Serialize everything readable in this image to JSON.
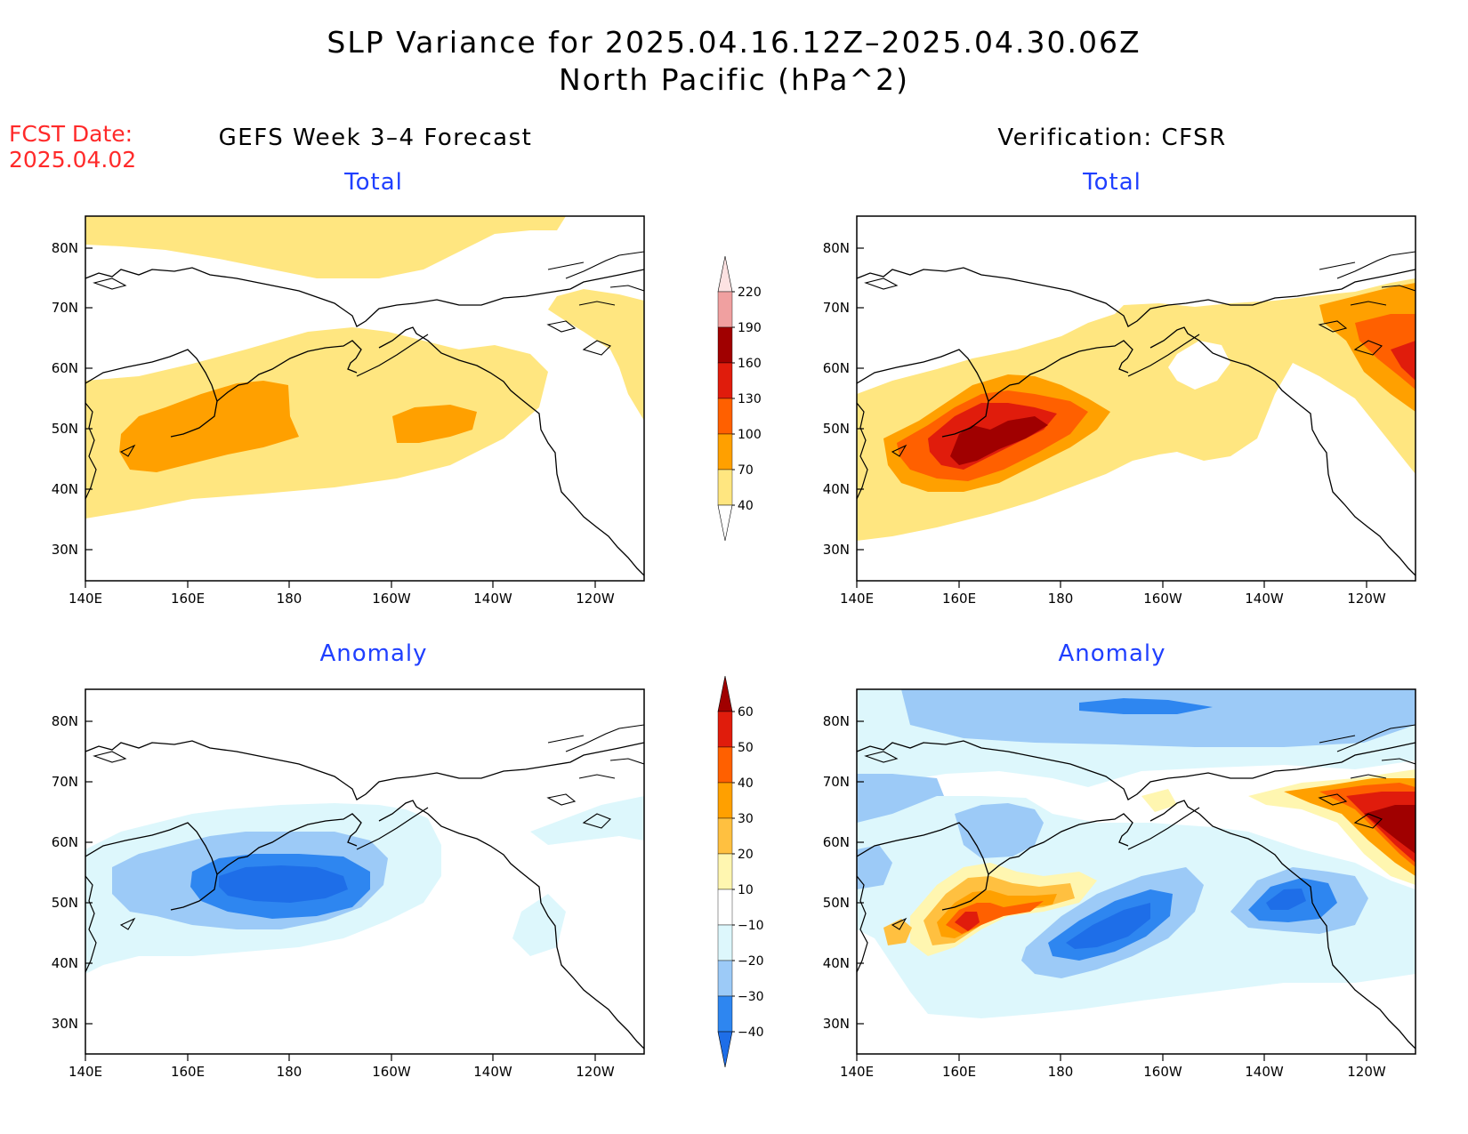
{
  "header": {
    "title_line1": "SLP Variance for 2025.04.16.12Z–2025.04.30.06Z",
    "title_line2": "North Pacific (hPa^2)",
    "fcst_label": "FCST Date:",
    "fcst_date": "2025.04.02"
  },
  "columns": {
    "left": "GEFS Week 3–4 Forecast",
    "right": "Verification: CFSR"
  },
  "panel_titles": {
    "top_left": "Total",
    "top_right": "Total",
    "bottom_left": "Anomaly",
    "bottom_right": "Anomaly"
  },
  "axes": {
    "lon_labels": [
      "140E",
      "160E",
      "180",
      "160W",
      "140W",
      "120W"
    ],
    "lat_labels": [
      "80N",
      "70N",
      "60N",
      "50N",
      "40N",
      "30N"
    ]
  },
  "colorbar_total": {
    "levels": [
      "40",
      "70",
      "100",
      "130",
      "160",
      "190",
      "220"
    ],
    "colors": [
      "#ffe680",
      "#ffa000",
      "#ff6000",
      "#e01c0c",
      "#a00000",
      "#f0a0a0",
      "#fde2e2"
    ]
  },
  "colorbar_anomaly": {
    "levels": [
      "−40",
      "−30",
      "−20",
      "−10",
      "10",
      "20",
      "30",
      "40",
      "50",
      "60"
    ],
    "colors": [
      "#1e6ee8",
      "#2e86f0",
      "#9ccaf7",
      "#ddf7fc",
      "#ffffff",
      "#fff6b0",
      "#ffc040",
      "#ffa000",
      "#ff6000",
      "#e01c0c",
      "#a00000"
    ]
  },
  "chart_data": [
    {
      "type": "heatmap",
      "title": "Total",
      "subtitle": "GEFS Week 3–4 Forecast",
      "x_range": [
        "140E",
        "110W"
      ],
      "y_range": [
        "25N",
        "85N"
      ],
      "features": [
        {
          "level": "40-70",
          "color": "#ffe680",
          "description": "broad band across North Pacific 35N-65N"
        },
        {
          "level": "70-100",
          "color": "#ffa000",
          "description": "maxima near 45N-55N, 145E-175W and 150W"
        }
      ]
    },
    {
      "type": "heatmap",
      "title": "Total",
      "subtitle": "Verification: CFSR",
      "x_range": [
        "140E",
        "110W"
      ],
      "y_range": [
        "25N",
        "85N"
      ],
      "features": [
        {
          "level": "40-70",
          "color": "#ffe680",
          "description": "storm track 35N-70N"
        },
        {
          "level": "100-160",
          "color": "#e01c0c",
          "description": "core near 45N-50N, 155E-180"
        },
        {
          "level": "100-130",
          "color": "#ff6000",
          "description": "secondary maximum near 60N, 115W"
        }
      ]
    },
    {
      "type": "heatmap",
      "title": "Anomaly",
      "subtitle": "GEFS Week 3–4 Forecast",
      "x_range": [
        "140E",
        "110W"
      ],
      "y_range": [
        "25N",
        "85N"
      ],
      "features": [
        {
          "level": "-40 to -30",
          "color": "#1e6ee8",
          "description": "negative core near 50N, 180"
        }
      ]
    },
    {
      "type": "heatmap",
      "title": "Anomaly",
      "subtitle": "Verification: CFSR",
      "x_range": [
        "140E",
        "110W"
      ],
      "y_range": [
        "25N",
        "85N"
      ],
      "features": [
        {
          "level": "30-50",
          "color": "#ff6000",
          "description": "positive near 45N, 160E"
        },
        {
          "level": "-40 to -30",
          "color": "#1e6ee8",
          "description": "negative near 45N, 165W and 50N, 130W"
        },
        {
          "level": "50-60",
          "color": "#a00000",
          "description": "positive near 60N, 115W"
        }
      ]
    }
  ]
}
